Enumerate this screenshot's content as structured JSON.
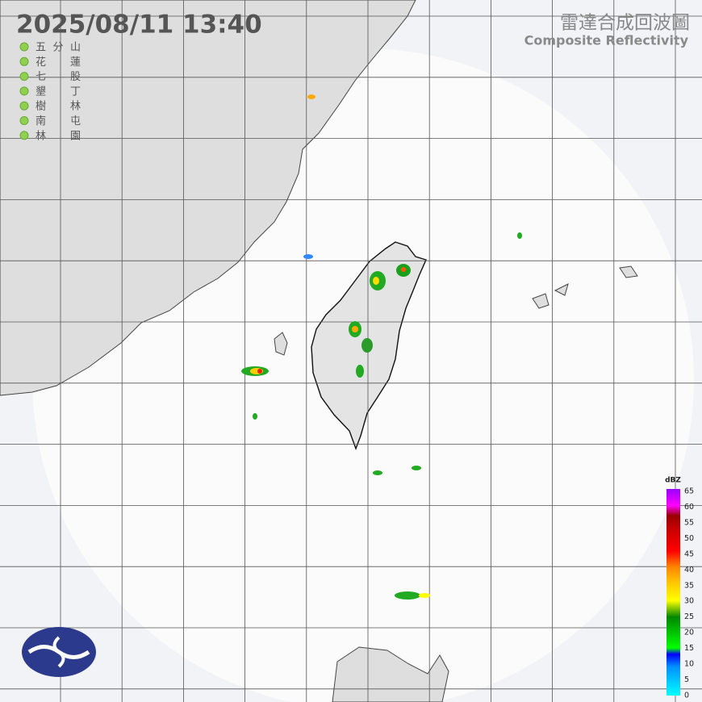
{
  "header": {
    "time": "2025/08/11  13:40",
    "title": "雷達合成回波圖",
    "subtitle": "Composite Reflectivity"
  },
  "stations": [
    "五分山",
    "花蓮",
    "七股",
    "墾丁",
    "樹林",
    "南屯",
    "林園"
  ],
  "legend": {
    "unit": "dBZ",
    "ticks": [
      0,
      5,
      10,
      15,
      20,
      25,
      30,
      35,
      40,
      45,
      50,
      55,
      60,
      65
    ]
  }
}
